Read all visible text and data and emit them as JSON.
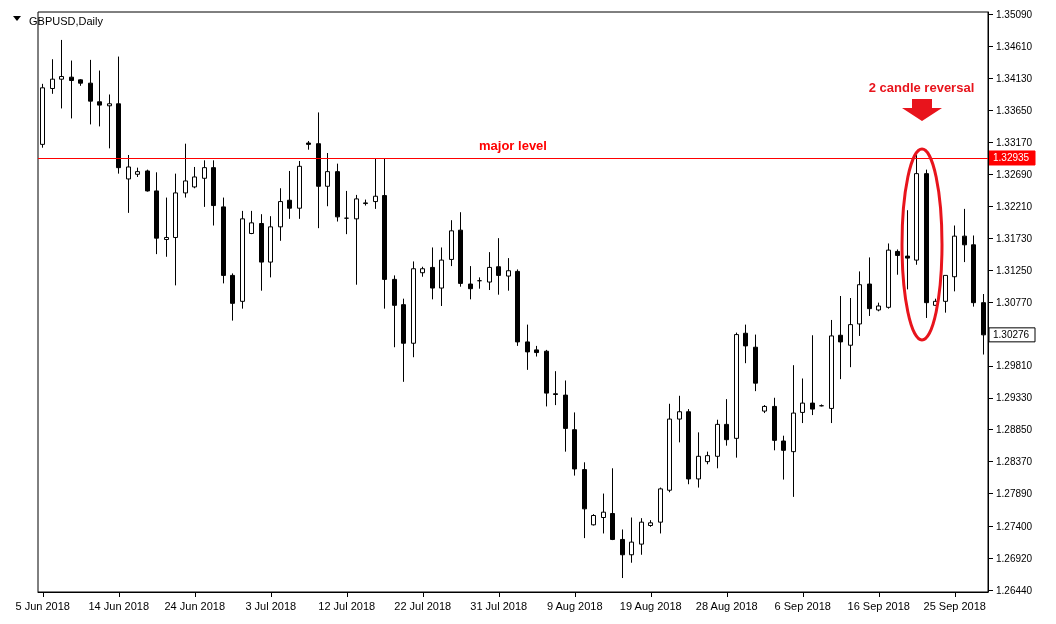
{
  "chart_data": {
    "type": "candlestick",
    "title": "GBPUSD,Daily",
    "categories": [
      "5 Jun 2018",
      null,
      null,
      null,
      null,
      null,
      null,
      null,
      "14 Jun 2018",
      null,
      null,
      null,
      null,
      null,
      null,
      null,
      "24 Jun 2018",
      null,
      null,
      null,
      null,
      null,
      null,
      null,
      "3 Jul 2018",
      null,
      null,
      null,
      null,
      null,
      null,
      null,
      "12 Jul 2018",
      null,
      null,
      null,
      null,
      null,
      null,
      null,
      "22 Jul 2018",
      null,
      null,
      null,
      null,
      null,
      null,
      null,
      "31 Jul 2018",
      null,
      null,
      null,
      null,
      null,
      null,
      null,
      "9 Aug 2018",
      null,
      null,
      null,
      null,
      null,
      null,
      null,
      "19 Aug 2018",
      null,
      null,
      null,
      null,
      null,
      null,
      null,
      "28 Aug 2018",
      null,
      null,
      null,
      null,
      null,
      null,
      null,
      "6 Sep 2018",
      null,
      null,
      null,
      null,
      null,
      null,
      null,
      "16 Sep 2018",
      null,
      null,
      null,
      null,
      null,
      null,
      null,
      "25 Sep 2018",
      null,
      null,
      null
    ],
    "ohlc": [
      [
        1.3314,
        1.3405,
        1.3309,
        1.3399
      ],
      [
        1.3398,
        1.3442,
        1.339,
        1.3412
      ],
      [
        1.3412,
        1.3471,
        1.3368,
        1.3416
      ],
      [
        1.3415,
        1.344,
        1.3353,
        1.341
      ],
      [
        1.3411,
        1.3412,
        1.3402,
        1.3406
      ],
      [
        1.3406,
        1.3441,
        1.3344,
        1.3379
      ],
      [
        1.3378,
        1.3425,
        1.3341,
        1.3373
      ],
      [
        1.3372,
        1.3389,
        1.3308,
        1.3375
      ],
      [
        1.3375,
        1.3446,
        1.327,
        1.3279
      ],
      [
        1.3262,
        1.3298,
        1.3211,
        1.328
      ],
      [
        1.3269,
        1.3279,
        1.3265,
        1.3273
      ],
      [
        1.3274,
        1.3276,
        1.3243,
        1.3244
      ],
      [
        1.3244,
        1.3272,
        1.3149,
        1.3173
      ],
      [
        1.3171,
        1.3234,
        1.3145,
        1.3174
      ],
      [
        1.3174,
        1.327,
        1.3102,
        1.3241
      ],
      [
        1.3241,
        1.3315,
        1.3234,
        1.3259
      ],
      [
        1.325,
        1.328,
        1.3248,
        1.3265
      ],
      [
        1.3263,
        1.329,
        1.322,
        1.3279
      ],
      [
        1.3279,
        1.329,
        1.3192,
        1.3222
      ],
      [
        1.322,
        1.3234,
        1.3105,
        1.3117
      ],
      [
        1.3117,
        1.312,
        1.3049,
        1.3075
      ],
      [
        1.3078,
        1.3214,
        1.3067,
        1.3202
      ],
      [
        1.318,
        1.3214,
        1.3179,
        1.3196
      ],
      [
        1.3195,
        1.3209,
        1.3094,
        1.3137
      ],
      [
        1.3137,
        1.3206,
        1.3114,
        1.319
      ],
      [
        1.319,
        1.3248,
        1.3169,
        1.3228
      ],
      [
        1.323,
        1.3274,
        1.3202,
        1.3218
      ],
      [
        1.3218,
        1.3289,
        1.3202,
        1.3281
      ],
      [
        1.3316,
        1.3319,
        1.3306,
        1.3314
      ],
      [
        1.3315,
        1.3362,
        1.3188,
        1.3251
      ],
      [
        1.3251,
        1.3301,
        1.3221,
        1.3273
      ],
      [
        1.3273,
        1.3285,
        1.3198,
        1.3205
      ],
      [
        1.3203,
        1.3244,
        1.3179,
        1.3203
      ],
      [
        1.3202,
        1.3238,
        1.3103,
        1.3232
      ],
      [
        1.3225,
        1.3231,
        1.3222,
        1.3226
      ],
      [
        1.3228,
        1.3293,
        1.3217,
        1.3236
      ],
      [
        1.3237,
        1.3293,
        1.3067,
        1.3111
      ],
      [
        1.3111,
        1.3117,
        1.3009,
        1.3072
      ],
      [
        1.3073,
        1.3082,
        1.2957,
        1.3015
      ],
      [
        1.3015,
        1.3138,
        1.2994,
        1.3127
      ],
      [
        1.3121,
        1.313,
        1.3115,
        1.3127
      ],
      [
        1.3129,
        1.3159,
        1.3081,
        1.3098
      ],
      [
        1.3098,
        1.3159,
        1.3071,
        1.314
      ],
      [
        1.3141,
        1.32,
        1.3131,
        1.3184
      ],
      [
        1.3185,
        1.3212,
        1.31,
        1.3105
      ],
      [
        1.3104,
        1.3131,
        1.3081,
        1.3097
      ],
      [
        1.3109,
        1.3114,
        1.3097,
        1.3109
      ],
      [
        1.3107,
        1.3152,
        1.3095,
        1.3129
      ],
      [
        1.313,
        1.3173,
        1.3088,
        1.3117
      ],
      [
        1.3116,
        1.3143,
        1.3094,
        1.3124
      ],
      [
        1.3123,
        1.3126,
        1.3011,
        1.3017
      ],
      [
        1.3017,
        1.3043,
        1.2975,
        1.3002
      ],
      [
        1.3005,
        1.3011,
        1.2995,
        1.3001
      ],
      [
        1.3003,
        1.3005,
        1.292,
        1.294
      ],
      [
        1.2939,
        1.2973,
        1.2922,
        1.2938
      ],
      [
        1.2937,
        1.2959,
        1.2852,
        1.2887
      ],
      [
        1.2885,
        1.2911,
        1.2816,
        1.2826
      ],
      [
        1.2825,
        1.2836,
        1.2722,
        1.2766
      ],
      [
        1.2742,
        1.2758,
        1.2741,
        1.2756
      ],
      [
        1.2753,
        1.2789,
        1.2729,
        1.2761
      ],
      [
        1.2759,
        1.2827,
        1.2719,
        1.272
      ],
      [
        1.272,
        1.2735,
        1.2662,
        1.2697
      ],
      [
        1.2697,
        1.2753,
        1.2685,
        1.2716
      ],
      [
        1.2713,
        1.2752,
        1.2697,
        1.2746
      ],
      [
        1.2741,
        1.2749,
        1.2739,
        1.2745
      ],
      [
        1.2746,
        1.2798,
        1.2729,
        1.2796
      ],
      [
        1.2794,
        1.2924,
        1.2791,
        1.2901
      ],
      [
        1.2901,
        1.2936,
        1.2866,
        1.2912
      ],
      [
        1.2912,
        1.2916,
        1.2803,
        1.2811
      ],
      [
        1.2811,
        1.2881,
        1.2798,
        1.2845
      ],
      [
        1.2837,
        1.2852,
        1.2833,
        1.2846
      ],
      [
        1.2845,
        1.29,
        1.2827,
        1.2893
      ],
      [
        1.2893,
        1.2931,
        1.2861,
        1.287
      ],
      [
        1.2872,
        1.3031,
        1.2843,
        1.3028
      ],
      [
        1.303,
        1.3043,
        1.2985,
        1.3011
      ],
      [
        1.3009,
        1.3028,
        1.2943,
        1.2955
      ],
      [
        1.2913,
        1.2922,
        1.291,
        1.292
      ],
      [
        1.292,
        1.2933,
        1.2854,
        1.2869
      ],
      [
        1.2868,
        1.2876,
        1.281,
        1.2854
      ],
      [
        1.2852,
        1.2982,
        1.2784,
        1.291
      ],
      [
        1.2911,
        1.2962,
        1.2895,
        1.2925
      ],
      [
        1.2925,
        1.3027,
        1.2907,
        1.2916
      ],
      [
        1.2921,
        1.2923,
        1.292,
        1.2921
      ],
      [
        1.2917,
        1.305,
        1.2895,
        1.3026
      ],
      [
        1.3027,
        1.3086,
        1.2961,
        1.3017
      ],
      [
        1.3012,
        1.3083,
        1.2979,
        1.3043
      ],
      [
        1.3044,
        1.3123,
        1.3026,
        1.3103
      ],
      [
        1.3104,
        1.3144,
        1.3056,
        1.3067
      ],
      [
        1.3065,
        1.3076,
        1.3063,
        1.3071
      ],
      [
        1.3069,
        1.3165,
        1.3067,
        1.3155
      ],
      [
        1.3153,
        1.3156,
        1.3118,
        1.3147
      ],
      [
        1.3146,
        1.3215,
        1.3096,
        1.3143
      ],
      [
        1.314,
        1.3298,
        1.3133,
        1.327
      ],
      [
        1.327,
        1.3276,
        1.3053,
        1.3076
      ],
      [
        1.3072,
        1.3082,
        1.3071,
        1.3078
      ],
      [
        1.3078,
        1.3117,
        1.3061,
        1.3117
      ],
      [
        1.3115,
        1.3192,
        1.3093,
        1.3176
      ],
      [
        1.3176,
        1.3217,
        1.3137,
        1.3163
      ],
      [
        1.3163,
        1.3177,
        1.307,
        1.3076
      ],
      [
        1.3076,
        1.3089,
        1.2998,
        1.30276
      ]
    ],
    "ylim": [
      1.2641,
      1.3513
    ],
    "yticks": [
      {
        "value": 1.2644,
        "label": "1.26440"
      },
      {
        "value": 1.2692,
        "label": "1.26920"
      },
      {
        "value": 1.274,
        "label": "1.27400"
      },
      {
        "value": 1.2789,
        "label": "1.27890"
      },
      {
        "value": 1.2837,
        "label": "1.28370"
      },
      {
        "value": 1.2885,
        "label": "1.28850"
      },
      {
        "value": 1.2933,
        "label": "1.29330"
      },
      {
        "value": 1.2981,
        "label": "1.29810"
      },
      {
        "value": 1.3077,
        "label": "1.30770"
      },
      {
        "value": 1.3125,
        "label": "1.31250"
      },
      {
        "value": 1.3173,
        "label": "1.31730"
      },
      {
        "value": 1.3221,
        "label": "1.32210"
      },
      {
        "value": 1.3269,
        "label": "1.32690"
      },
      {
        "value": 1.3317,
        "label": "1.33170"
      },
      {
        "value": 1.3365,
        "label": "1.33650"
      },
      {
        "value": 1.3413,
        "label": "1.34130"
      },
      {
        "value": 1.3461,
        "label": "1.34610"
      },
      {
        "value": 1.3509,
        "label": "1.35090"
      }
    ],
    "ref_lines": [
      {
        "axis": "y",
        "value": 1.32935,
        "label": "major level",
        "color": "#ff0000"
      }
    ],
    "annotations": [
      "1.32935",
      "1.30276",
      "2 candle reversal"
    ]
  }
}
